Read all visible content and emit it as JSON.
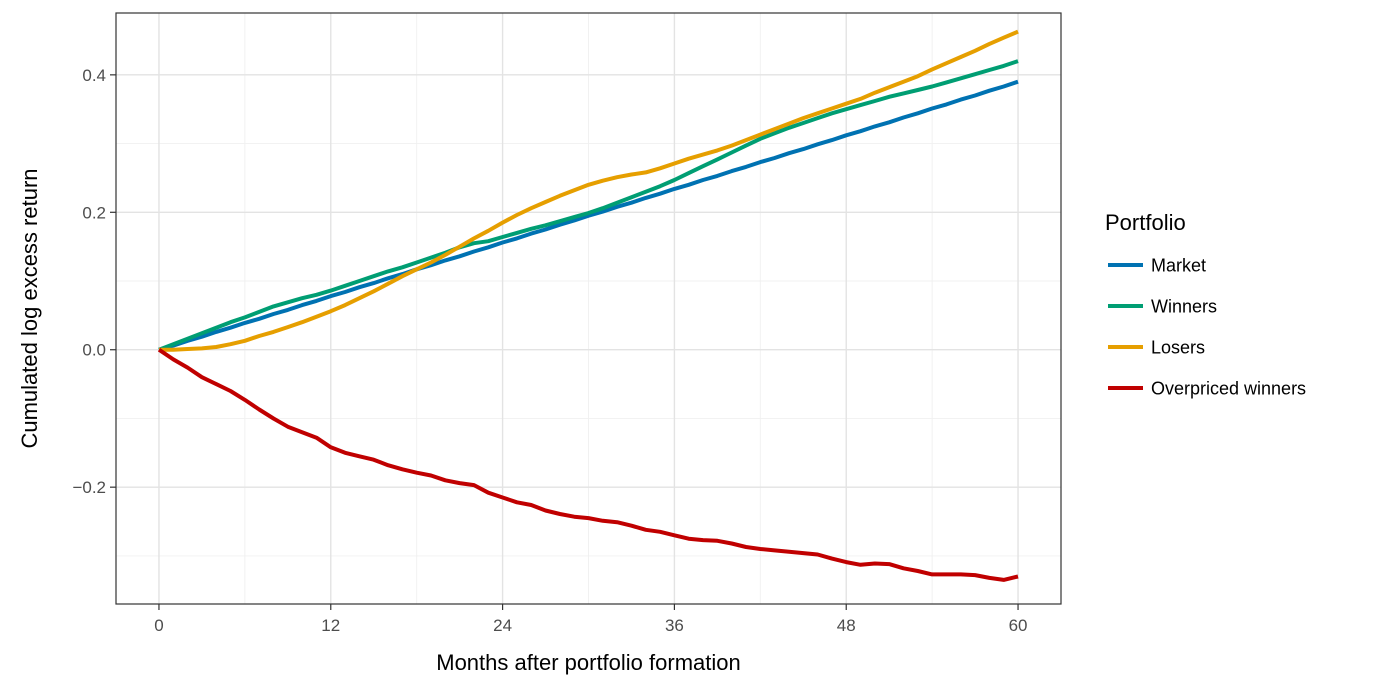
{
  "chart_data": {
    "type": "line",
    "title": "",
    "xlabel": "Months after portfolio formation",
    "ylabel": "Cumulated log excess return",
    "xlim": [
      -3,
      63
    ],
    "ylim": [
      -0.37,
      0.49
    ],
    "x_ticks": [
      0,
      12,
      24,
      36,
      48,
      60
    ],
    "x_tick_labels": [
      "0",
      "12",
      "24",
      "36",
      "48",
      "60"
    ],
    "y_ticks": [
      -0.2,
      0.0,
      0.2,
      0.4
    ],
    "y_tick_labels": [
      "−0.2",
      "0.0",
      "0.2",
      "0.4"
    ],
    "grid": true,
    "legend": {
      "title": "Portfolio",
      "position": "right"
    },
    "x": [
      0,
      1,
      2,
      3,
      4,
      5,
      6,
      7,
      8,
      9,
      10,
      11,
      12,
      13,
      14,
      15,
      16,
      17,
      18,
      19,
      20,
      21,
      22,
      23,
      24,
      25,
      26,
      27,
      28,
      29,
      30,
      31,
      32,
      33,
      34,
      35,
      36,
      37,
      38,
      39,
      40,
      41,
      42,
      43,
      44,
      45,
      46,
      47,
      48,
      49,
      50,
      51,
      52,
      53,
      54,
      55,
      56,
      57,
      58,
      59,
      60
    ],
    "series": [
      {
        "name": "Market",
        "color": "#0072B2",
        "values": [
          0.0,
          0.006,
          0.013,
          0.019,
          0.026,
          0.032,
          0.039,
          0.045,
          0.052,
          0.058,
          0.065,
          0.071,
          0.078,
          0.084,
          0.091,
          0.097,
          0.104,
          0.11,
          0.117,
          0.123,
          0.13,
          0.136,
          0.143,
          0.149,
          0.156,
          0.162,
          0.169,
          0.175,
          0.182,
          0.188,
          0.195,
          0.201,
          0.208,
          0.214,
          0.221,
          0.227,
          0.234,
          0.24,
          0.247,
          0.253,
          0.26,
          0.266,
          0.273,
          0.279,
          0.286,
          0.292,
          0.299,
          0.305,
          0.312,
          0.318,
          0.325,
          0.331,
          0.338,
          0.344,
          0.351,
          0.357,
          0.364,
          0.37,
          0.377,
          0.383,
          0.39
        ]
      },
      {
        "name": "Winners",
        "color": "#009E73",
        "values": [
          0.0,
          0.008,
          0.016,
          0.024,
          0.032,
          0.04,
          0.047,
          0.055,
          0.063,
          0.069,
          0.075,
          0.08,
          0.086,
          0.093,
          0.1,
          0.107,
          0.114,
          0.12,
          0.127,
          0.134,
          0.141,
          0.149,
          0.155,
          0.158,
          0.164,
          0.17,
          0.176,
          0.181,
          0.187,
          0.193,
          0.199,
          0.206,
          0.214,
          0.222,
          0.23,
          0.238,
          0.247,
          0.257,
          0.267,
          0.277,
          0.287,
          0.297,
          0.307,
          0.315,
          0.323,
          0.33,
          0.337,
          0.344,
          0.35,
          0.356,
          0.362,
          0.368,
          0.373,
          0.378,
          0.383,
          0.389,
          0.395,
          0.401,
          0.407,
          0.413,
          0.42
        ]
      },
      {
        "name": "Losers",
        "color": "#E69F00",
        "values": [
          0.0,
          0.0,
          0.001,
          0.002,
          0.004,
          0.008,
          0.013,
          0.02,
          0.026,
          0.033,
          0.04,
          0.048,
          0.056,
          0.065,
          0.075,
          0.085,
          0.096,
          0.107,
          0.117,
          0.127,
          0.138,
          0.15,
          0.162,
          0.173,
          0.185,
          0.196,
          0.206,
          0.215,
          0.224,
          0.232,
          0.24,
          0.246,
          0.251,
          0.255,
          0.258,
          0.264,
          0.271,
          0.278,
          0.284,
          0.29,
          0.297,
          0.305,
          0.313,
          0.321,
          0.329,
          0.337,
          0.344,
          0.351,
          0.358,
          0.365,
          0.374,
          0.382,
          0.39,
          0.398,
          0.408,
          0.417,
          0.426,
          0.435,
          0.445,
          0.454,
          0.463
        ]
      },
      {
        "name": "Overpriced winners",
        "color": "#C00000",
        "values": [
          0.0,
          -0.014,
          -0.026,
          -0.04,
          -0.05,
          -0.06,
          -0.073,
          -0.087,
          -0.1,
          -0.112,
          -0.12,
          -0.128,
          -0.142,
          -0.15,
          -0.155,
          -0.16,
          -0.168,
          -0.174,
          -0.179,
          -0.183,
          -0.19,
          -0.194,
          -0.197,
          -0.208,
          -0.215,
          -0.222,
          -0.226,
          -0.234,
          -0.239,
          -0.243,
          -0.245,
          -0.249,
          -0.251,
          -0.256,
          -0.262,
          -0.265,
          -0.27,
          -0.275,
          -0.277,
          -0.278,
          -0.282,
          -0.287,
          -0.29,
          -0.292,
          -0.294,
          -0.296,
          -0.298,
          -0.304,
          -0.309,
          -0.313,
          -0.311,
          -0.312,
          -0.318,
          -0.322,
          -0.327,
          -0.327,
          -0.327,
          -0.328,
          -0.332,
          -0.335,
          -0.33
        ]
      }
    ]
  }
}
